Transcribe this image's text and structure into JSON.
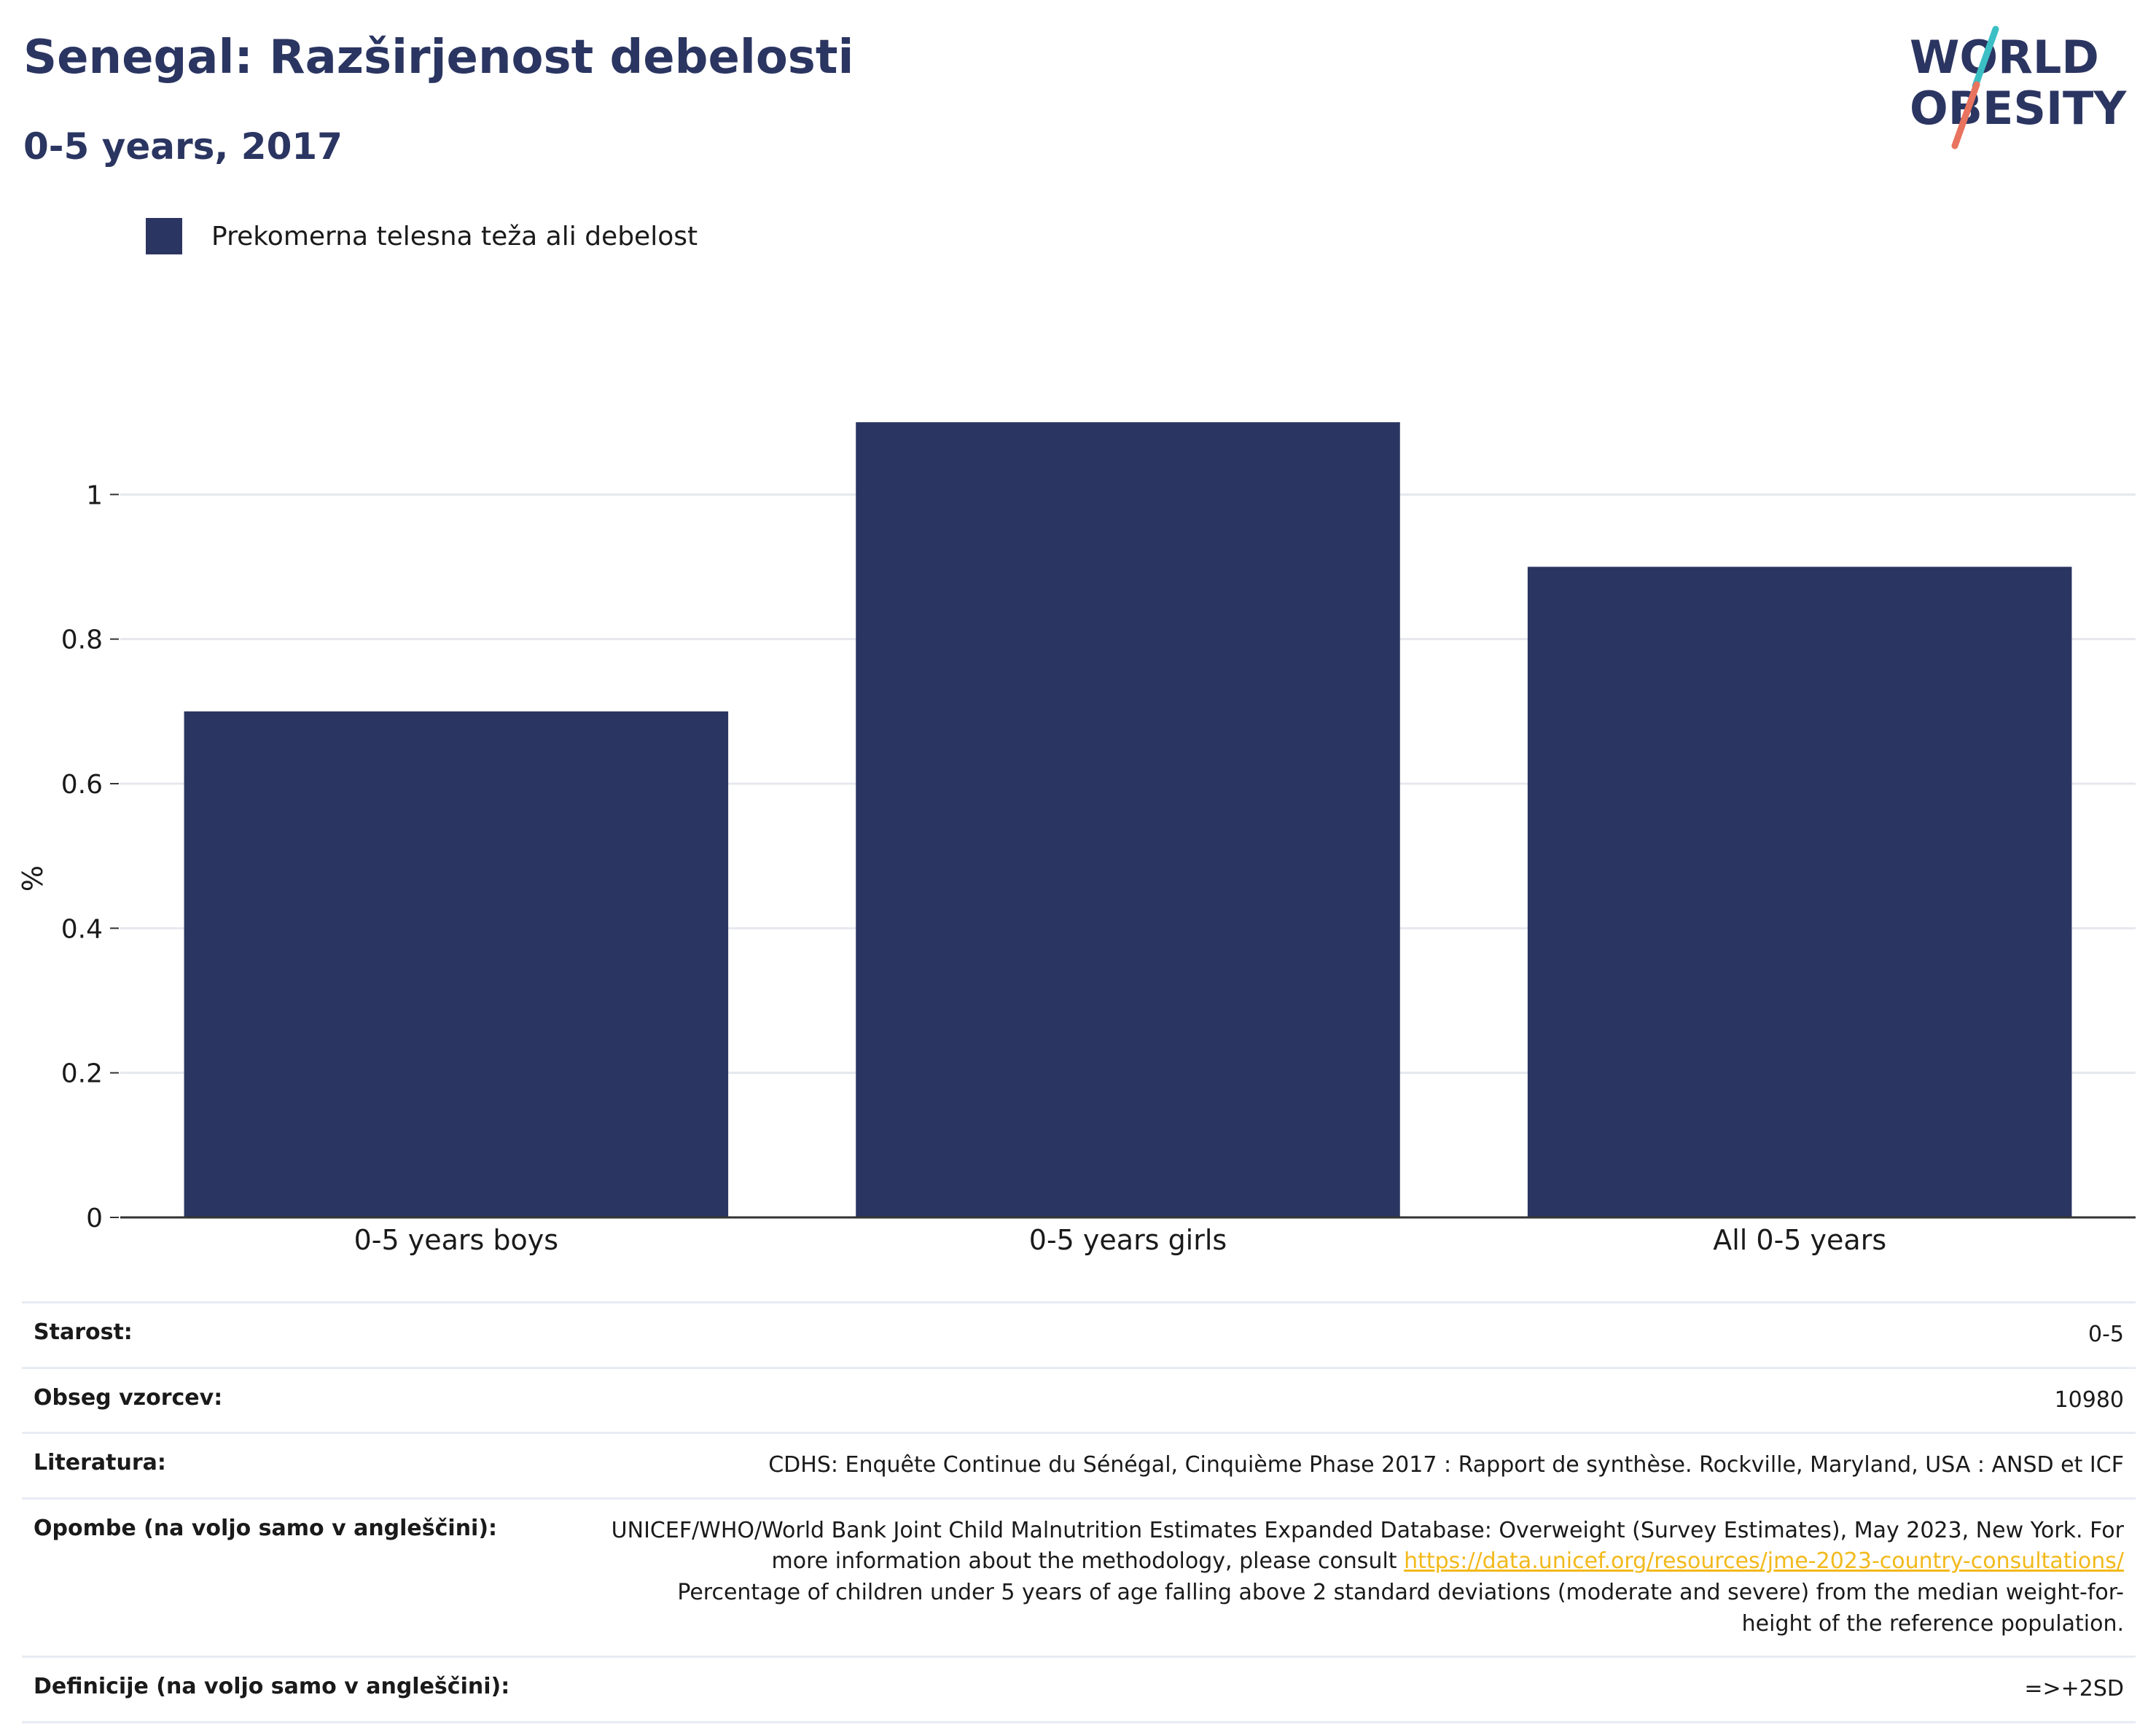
{
  "header": {
    "title": "Senegal: Razširjenost debelosti",
    "subtitle": "0-5 years, 2017"
  },
  "logo": {
    "line1": "WORLD",
    "line2": "OBESITY",
    "colors": {
      "text": "#2b3561",
      "slash_top": "#3bbfc4",
      "slash_bottom": "#e8735f"
    }
  },
  "colors": {
    "bar": "#2b3561",
    "grid": "#e6e8ee",
    "axis": "#333333",
    "link": "#f2b91b"
  },
  "chart_data": {
    "type": "bar",
    "title": "Senegal: Razširjenost debelosti",
    "subtitle": "0-5 years, 2017",
    "categories": [
      "0-5 years boys",
      "0-5 years girls",
      "All 0-5 years"
    ],
    "series": [
      {
        "name": "Prekomerna telesna teža ali debelost",
        "values": [
          0.7,
          1.1,
          0.9
        ],
        "color": "#2b3561"
      }
    ],
    "xlabel": "",
    "ylabel": "%",
    "ylim": [
      0,
      1.2
    ],
    "yticks": [
      0,
      0.2,
      0.4,
      0.6,
      0.8,
      1
    ],
    "ytick_labels": [
      "0",
      "0.2",
      "0.4",
      "0.6",
      "0.8",
      "1"
    ],
    "grid": true,
    "legend": "top-left"
  },
  "meta": {
    "rows": [
      {
        "label": "Starost:",
        "value": "0-5"
      },
      {
        "label": "Obseg vzorcev:",
        "value": "10980"
      },
      {
        "label": "Literatura:",
        "value": "CDHS: Enquête Continue du Sénégal, Cinquième Phase 2017 : Rapport de synthèse. Rockville, Maryland, USA : ANSD et ICF"
      }
    ],
    "notes": {
      "label": "Opombe (na voljo samo v angleščini):",
      "text_before": "UNICEF/WHO/World Bank Joint Child Malnutrition Estimates Expanded Database: Overweight (Survey Estimates), May 2023, New York. For more information about the methodology, please consult ",
      "link": "https://data.unicef.org/resources/jme-2023-country-consultations/",
      "text_after": "Percentage of children under 5 years of age falling above 2 standard deviations (moderate and severe) from the median weight-for-height of the reference population."
    },
    "definitions": {
      "label": "Definicije (na voljo samo v angleščini):",
      "value": "=>+2SD"
    }
  }
}
